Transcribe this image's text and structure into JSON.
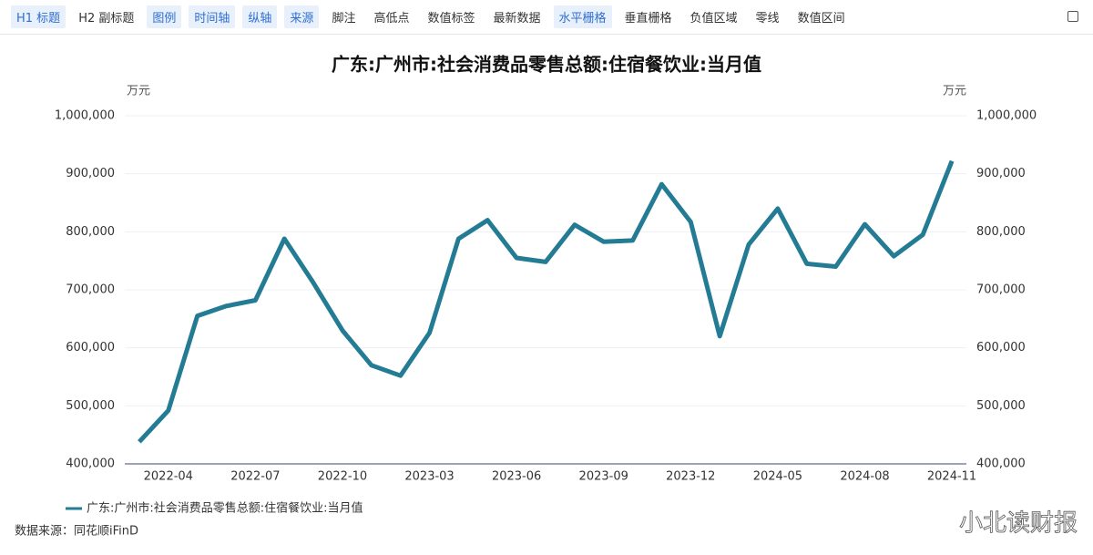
{
  "toolbar": [
    {
      "label": "H1 标题",
      "active": true
    },
    {
      "label": "H2 副标题",
      "active": false
    },
    {
      "label": "图例",
      "active": true
    },
    {
      "label": "时间轴",
      "active": true
    },
    {
      "label": "纵轴",
      "active": true
    },
    {
      "label": "来源",
      "active": true
    },
    {
      "label": "脚注",
      "active": false
    },
    {
      "label": "高低点",
      "active": false
    },
    {
      "label": "数值标签",
      "active": false
    },
    {
      "label": "最新数据",
      "active": false
    },
    {
      "label": "水平栅格",
      "active": true
    },
    {
      "label": "垂直栅格",
      "active": false
    },
    {
      "label": "负值区域",
      "active": false
    },
    {
      "label": "零线",
      "active": false
    },
    {
      "label": "数值区间",
      "active": false
    }
  ],
  "chart_data": {
    "type": "line",
    "title": "广东:广州市:社会消费品零售总额:住宿餐饮业:当月值",
    "y_unit": "万元",
    "y2_unit": "万元",
    "categories": [
      null,
      "2022-04",
      null,
      null,
      "2022-07",
      null,
      null,
      "2022-10",
      null,
      null,
      "2023-03",
      null,
      null,
      "2023-06",
      null,
      null,
      "2023-09",
      null,
      null,
      "2023-12",
      null,
      null,
      "2024-05",
      null,
      null,
      "2024-08",
      null,
      null,
      "2024-11"
    ],
    "series": [
      {
        "name": "广东:广州市:社会消费品零售总额:住宿餐饮业:当月值",
        "color": "#237b94",
        "values": [
          438000,
          492000,
          655000,
          672000,
          682000,
          788000,
          712000,
          630000,
          570000,
          552000,
          626000,
          788000,
          820000,
          755000,
          748000,
          812000,
          783000,
          785000,
          882000,
          817000,
          620000,
          778000,
          840000,
          745000,
          740000,
          813000,
          758000,
          795000,
          922000
        ]
      }
    ],
    "ylim": [
      400000,
      1000000
    ],
    "yticks": [
      {
        "value": 400000,
        "label": "400,000"
      },
      {
        "value": 500000,
        "label": "500,000"
      },
      {
        "value": 600000,
        "label": "600,000"
      },
      {
        "value": 700000,
        "label": "700,000"
      },
      {
        "value": 800000,
        "label": "800,000"
      },
      {
        "value": 900000,
        "label": "900,000"
      },
      {
        "value": 1000000,
        "label": "1,000,000"
      }
    ],
    "y2lim": [
      400000,
      1000000
    ],
    "y2ticks": [
      {
        "value": 400000,
        "label": "400,000"
      },
      {
        "value": 500000,
        "label": "500,000"
      },
      {
        "value": 600000,
        "label": "600,000"
      },
      {
        "value": 700000,
        "label": "700,000"
      },
      {
        "value": 800000,
        "label": "800,000"
      },
      {
        "value": 900000,
        "label": "900,000"
      },
      {
        "value": 1000000,
        "label": "1,000,000"
      }
    ],
    "grid": true,
    "source": "数据来源：同花顺iFinD"
  },
  "watermark": "小北读财报"
}
